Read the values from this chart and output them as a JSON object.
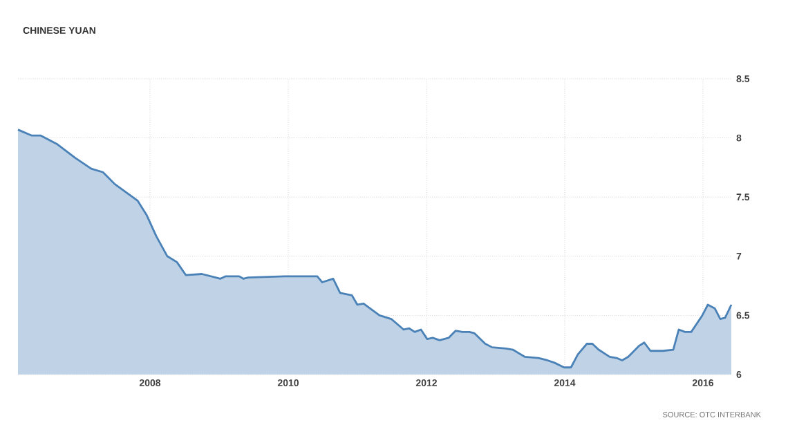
{
  "chart_data": {
    "type": "area",
    "title": "CHINESE YUAN",
    "annotations": [
      "SOURCE: OTC INTERBANK"
    ],
    "x": [
      2006.09,
      2006.29,
      2006.42,
      2006.65,
      2006.92,
      2007.15,
      2007.32,
      2007.49,
      2007.82,
      2007.95,
      2008.09,
      2008.25,
      2008.39,
      2008.52,
      2008.75,
      2009.02,
      2009.09,
      2009.29,
      2009.35,
      2009.42,
      2009.95,
      2010.42,
      2010.49,
      2010.65,
      2010.75,
      2010.92,
      2011.0,
      2011.09,
      2011.32,
      2011.49,
      2011.67,
      2011.75,
      2011.83,
      2011.92,
      2012.01,
      2012.09,
      2012.19,
      2012.32,
      2012.42,
      2012.52,
      2012.62,
      2012.69,
      2012.85,
      2012.95,
      2013.15,
      2013.25,
      2013.42,
      2013.62,
      2013.75,
      2013.85,
      2013.99,
      2014.09,
      2014.19,
      2014.32,
      2014.4,
      2014.49,
      2014.65,
      2014.75,
      2014.83,
      2014.92,
      2015.07,
      2015.15,
      2015.24,
      2015.42,
      2015.57,
      2015.65,
      2015.74,
      2015.83,
      2015.99,
      2016.07,
      2016.17,
      2016.25,
      2016.32,
      2016.41
    ],
    "series": [
      {
        "color": "#4a82b8",
        "values": [
          8.07,
          8.02,
          8.02,
          7.95,
          7.83,
          7.74,
          7.71,
          7.61,
          7.47,
          7.35,
          7.17,
          7.0,
          6.95,
          6.84,
          6.85,
          6.81,
          6.83,
          6.83,
          6.81,
          6.82,
          6.83,
          6.83,
          6.78,
          6.81,
          6.69,
          6.67,
          6.59,
          6.6,
          6.5,
          6.47,
          6.38,
          6.39,
          6.36,
          6.38,
          6.3,
          6.31,
          6.29,
          6.31,
          6.37,
          6.36,
          6.36,
          6.35,
          6.26,
          6.23,
          6.22,
          6.21,
          6.15,
          6.14,
          6.12,
          6.1,
          6.06,
          6.06,
          6.17,
          6.26,
          6.26,
          6.21,
          6.15,
          6.14,
          6.12,
          6.15,
          6.24,
          6.27,
          6.2,
          6.2,
          6.21,
          6.38,
          6.36,
          6.36,
          6.5,
          6.59,
          6.56,
          6.47,
          6.48,
          6.59
        ]
      }
    ],
    "xlim": [
      2006.09,
      2016.41
    ],
    "ylim": [
      6,
      8.5
    ],
    "xticks": [
      2008,
      2010,
      2012,
      2014,
      2016
    ],
    "yticks": [
      6,
      6.5,
      7,
      7.5,
      8,
      8.5
    ],
    "grid": true
  }
}
